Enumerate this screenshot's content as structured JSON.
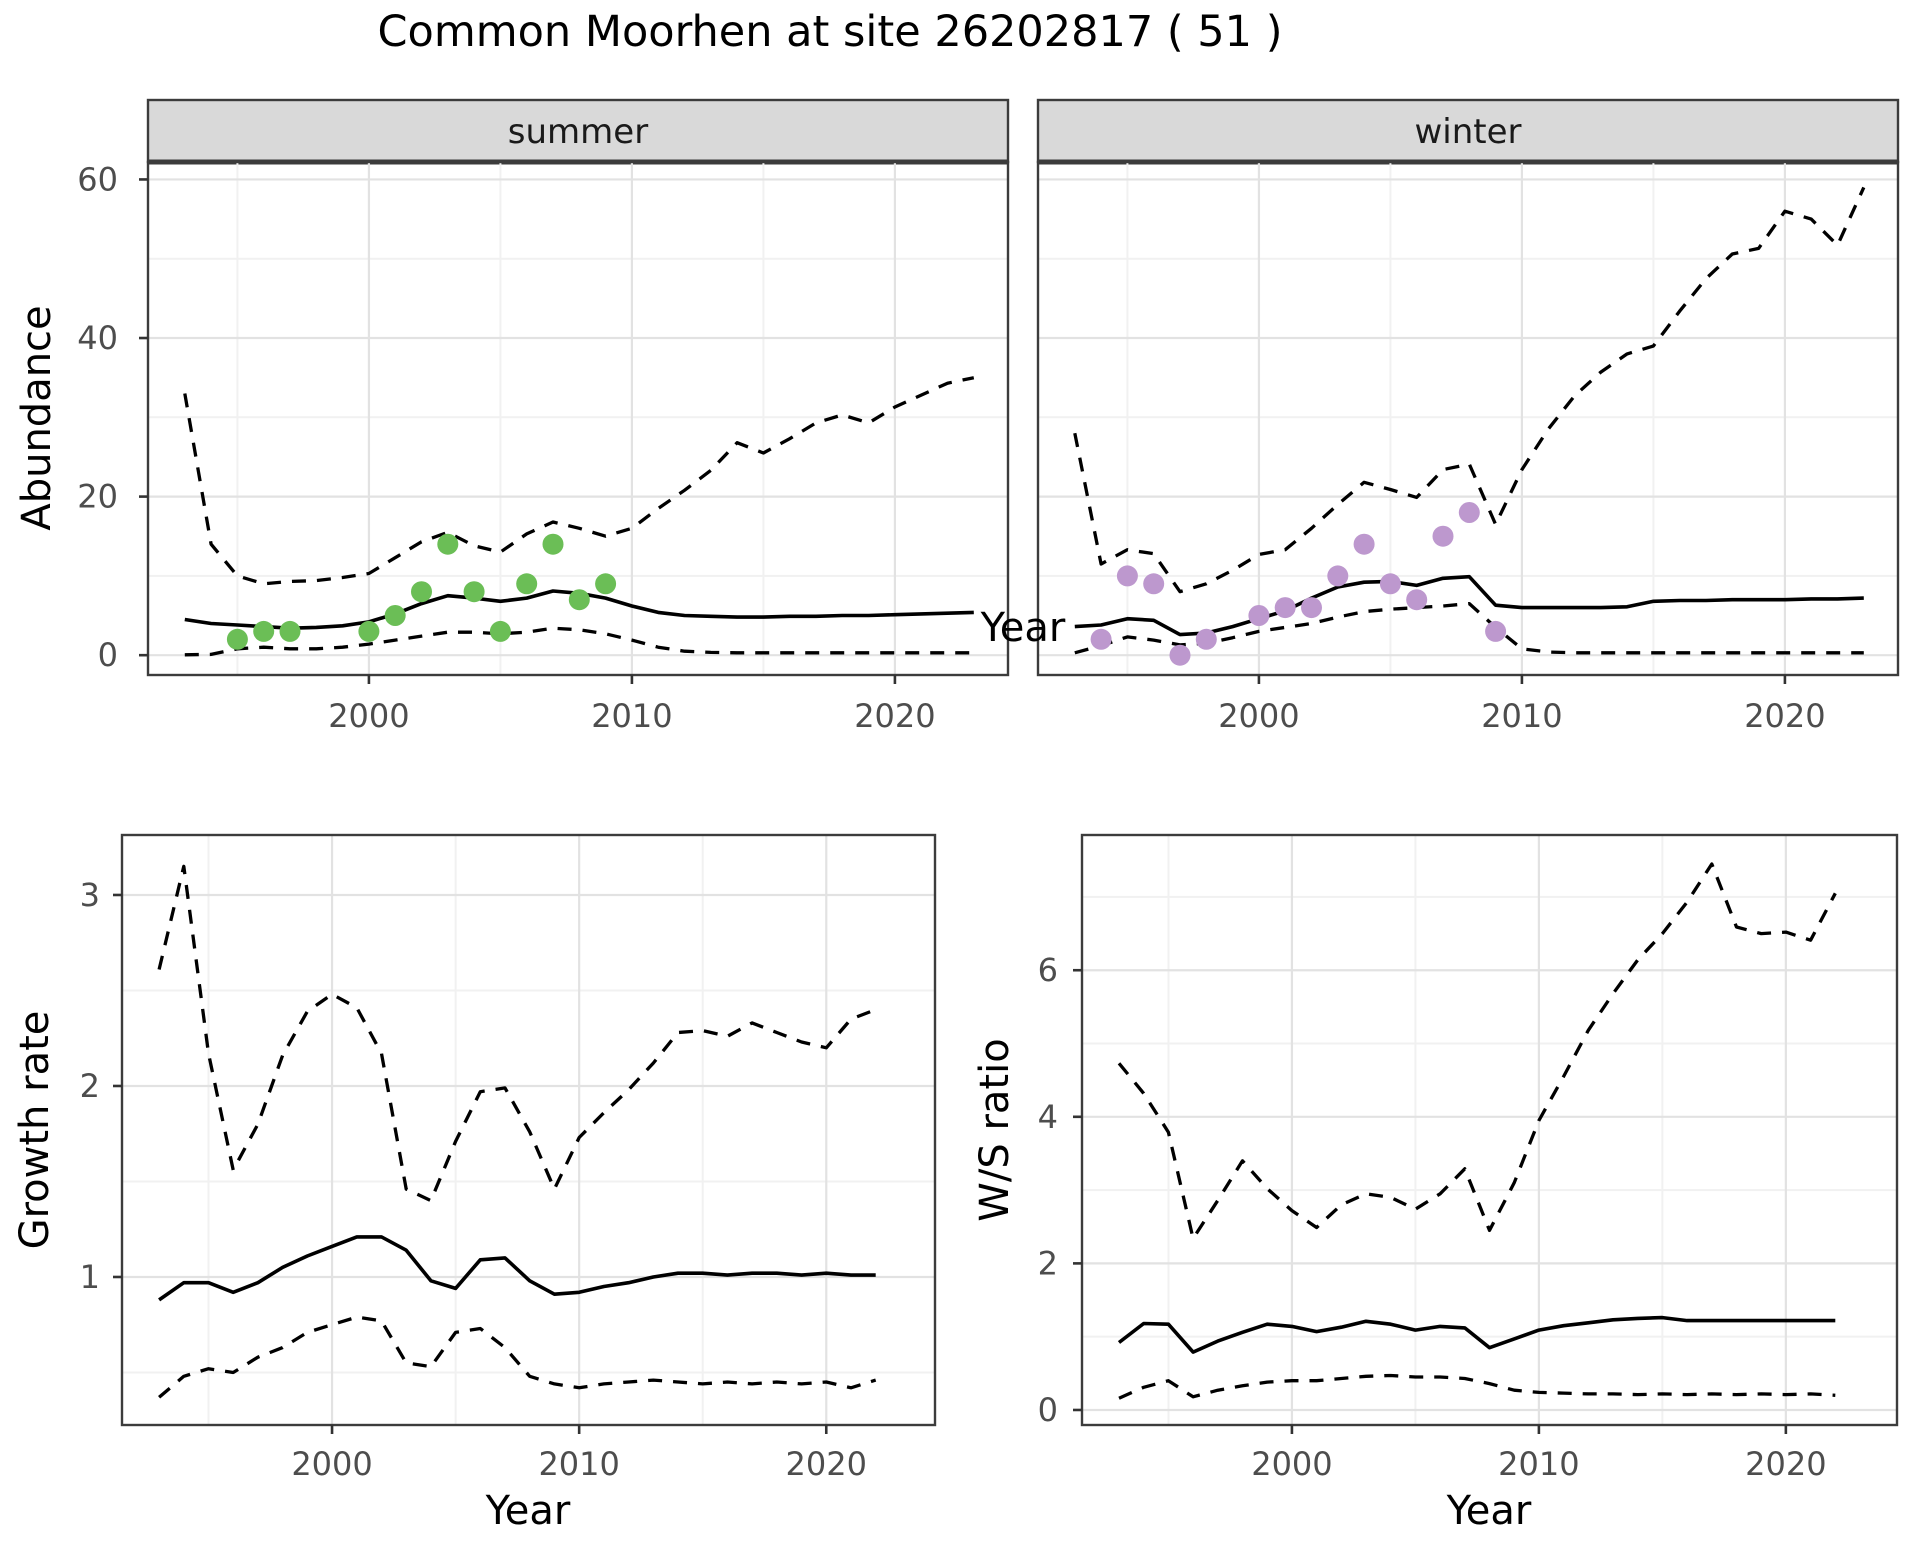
{
  "title": "Common Moorhen at site 26202817 ( 51 )",
  "colors": {
    "summer_points": "#6BBE56",
    "winter_points": "#BD98CE",
    "line": "#000000",
    "strip_bg": "#D9D9D9",
    "strip_border": "#3C3C3C",
    "panel_border": "#3C3C3C",
    "grid_major": "#E2E2E2",
    "grid_minor": "#F1F1F1",
    "tick_color": "#333333",
    "axis_text": "#4D4D4D",
    "title_text": "#000000",
    "strip_text": "#1A1A1A"
  },
  "chart_data": [
    {
      "panel": "abundance-summer",
      "type": "line",
      "facet_label": "summer",
      "xlabel": "Year",
      "ylabel": "Abundance",
      "xlim": [
        1991.6,
        2024.3
      ],
      "ylim": [
        -2.5,
        62.2
      ],
      "x_major": [
        2000,
        2010,
        2020
      ],
      "x_minor": [
        1995,
        2005,
        2015
      ],
      "y_major": [
        0,
        20,
        40,
        60
      ],
      "y_minor": [
        10,
        30,
        50
      ],
      "grid": true,
      "legend": "none",
      "series": [
        {
          "name": "fitted-median",
          "style": "solid",
          "x": [
            1993,
            1994,
            1995,
            1996,
            1997,
            1998,
            1999,
            2000,
            2001,
            2002,
            2003,
            2004,
            2005,
            2006,
            2007,
            2008,
            2009,
            2010,
            2011,
            2012,
            2013,
            2014,
            2015,
            2016,
            2017,
            2018,
            2019,
            2020,
            2021,
            2022,
            2023
          ],
          "y": [
            4.5,
            4.0,
            3.8,
            3.6,
            3.4,
            3.5,
            3.7,
            4.2,
            5.2,
            6.5,
            7.5,
            7.2,
            6.8,
            7.2,
            8.1,
            7.8,
            7.2,
            6.2,
            5.4,
            5.0,
            4.9,
            4.8,
            4.8,
            4.9,
            4.9,
            5.0,
            5.0,
            5.1,
            5.2,
            5.3,
            5.4
          ]
        },
        {
          "name": "upper-ci",
          "style": "dashed",
          "x": [
            1993,
            1994,
            1995,
            1996,
            1997,
            1998,
            1999,
            2000,
            2001,
            2002,
            2003,
            2004,
            2005,
            2006,
            2007,
            2008,
            2009,
            2010,
            2011,
            2012,
            2013,
            2014,
            2015,
            2016,
            2017,
            2018,
            2019,
            2020,
            2021,
            2022,
            2023
          ],
          "y": [
            33,
            14,
            10,
            9,
            9.3,
            9.4,
            9.8,
            10.3,
            12.3,
            14.3,
            15.5,
            13.8,
            13,
            15.3,
            16.8,
            16,
            15,
            16,
            18.5,
            20.8,
            23.3,
            26.8,
            25.5,
            27.3,
            29.3,
            30.3,
            29.3,
            31.3,
            32.8,
            34.3,
            35
          ]
        },
        {
          "name": "lower-ci",
          "style": "dashed",
          "x": [
            1993,
            1994,
            1995,
            1996,
            1997,
            1998,
            1999,
            2000,
            2001,
            2002,
            2003,
            2004,
            2005,
            2006,
            2007,
            2008,
            2009,
            2010,
            2011,
            2012,
            2013,
            2014,
            2015,
            2016,
            2017,
            2018,
            2019,
            2020,
            2021,
            2022,
            2023
          ],
          "y": [
            0.05,
            0.1,
            0.8,
            1.0,
            0.8,
            0.8,
            1.0,
            1.4,
            1.9,
            2.4,
            2.9,
            2.9,
            2.7,
            2.9,
            3.4,
            3.2,
            2.7,
            1.9,
            1.0,
            0.5,
            0.35,
            0.3,
            0.3,
            0.3,
            0.3,
            0.3,
            0.3,
            0.3,
            0.3,
            0.3,
            0.3
          ]
        },
        {
          "name": "observed-counts",
          "style": "points",
          "color": "#6BBE56",
          "x": [
            1995,
            1996,
            1997,
            2000,
            2001,
            2002,
            2003,
            2004,
            2005,
            2006,
            2007,
            2008,
            2009
          ],
          "y": [
            2,
            3,
            3,
            3,
            5,
            8,
            14,
            8,
            3,
            9,
            14,
            7,
            9
          ]
        }
      ]
    },
    {
      "panel": "abundance-winter",
      "type": "line",
      "facet_label": "winter",
      "xlabel": "Year",
      "ylabel": "Abundance",
      "xlim": [
        1991.6,
        2024.3
      ],
      "ylim": [
        -2.5,
        62.2
      ],
      "x_major": [
        2000,
        2010,
        2020
      ],
      "x_minor": [
        1995,
        2005,
        2015
      ],
      "y_major": [
        0,
        20,
        40,
        60
      ],
      "y_minor": [
        10,
        30,
        50
      ],
      "grid": true,
      "legend": "none",
      "series": [
        {
          "name": "fitted-median",
          "style": "solid",
          "x": [
            1993,
            1994,
            1995,
            1996,
            1997,
            1998,
            1999,
            2000,
            2001,
            2002,
            2003,
            2004,
            2005,
            2006,
            2007,
            2008,
            2009,
            2010,
            2011,
            2012,
            2013,
            2014,
            2015,
            2016,
            2017,
            2018,
            2019,
            2020,
            2021,
            2022,
            2023
          ],
          "y": [
            3.6,
            3.8,
            4.6,
            4.4,
            2.6,
            2.8,
            3.6,
            4.6,
            5.6,
            7.2,
            8.6,
            9.2,
            9.3,
            8.8,
            9.7,
            9.9,
            6.3,
            6.0,
            6.0,
            6.0,
            6.0,
            6.1,
            6.8,
            6.9,
            6.9,
            7.0,
            7.0,
            7.0,
            7.1,
            7.1,
            7.2
          ]
        },
        {
          "name": "upper-ci",
          "style": "dashed",
          "x": [
            1993,
            1994,
            1995,
            1996,
            1997,
            1998,
            1999,
            2000,
            2001,
            2002,
            2003,
            2004,
            2005,
            2006,
            2007,
            2008,
            2009,
            2010,
            2011,
            2012,
            2013,
            2014,
            2015,
            2016,
            2017,
            2018,
            2019,
            2020,
            2021,
            2022,
            2023
          ],
          "y": [
            28,
            11.5,
            13.3,
            12.8,
            8,
            9,
            10.7,
            12.7,
            13.3,
            16,
            19,
            21.8,
            20.9,
            19.9,
            23.4,
            24.1,
            16.5,
            23.4,
            28.5,
            32.7,
            35.7,
            38,
            39,
            43.4,
            47.5,
            50.6,
            51.3,
            56,
            55,
            51.7,
            59
          ]
        },
        {
          "name": "lower-ci",
          "style": "dashed",
          "x": [
            1993,
            1994,
            1995,
            1996,
            1997,
            1998,
            1999,
            2000,
            2001,
            2002,
            2003,
            2004,
            2005,
            2006,
            2007,
            2008,
            2009,
            2010,
            2011,
            2012,
            2013,
            2014,
            2015,
            2016,
            2017,
            2018,
            2019,
            2020,
            2021,
            2022,
            2023
          ],
          "y": [
            0.3,
            1.2,
            2.3,
            1.9,
            1.3,
            1.5,
            2.2,
            3.0,
            3.5,
            4.0,
            4.8,
            5.5,
            5.8,
            6.0,
            6.2,
            6.5,
            3.5,
            0.8,
            0.4,
            0.3,
            0.3,
            0.3,
            0.3,
            0.3,
            0.3,
            0.3,
            0.3,
            0.3,
            0.3,
            0.3,
            0.3
          ]
        },
        {
          "name": "observed-counts",
          "style": "points",
          "color": "#BD98CE",
          "x": [
            1994,
            1995,
            1996,
            1997,
            1998,
            2000,
            2001,
            2002,
            2003,
            2004,
            2005,
            2006,
            2007,
            2008,
            2009
          ],
          "y": [
            2,
            10,
            9,
            0,
            2,
            5,
            6,
            6,
            10,
            14,
            9,
            7,
            15,
            18,
            3
          ]
        }
      ]
    },
    {
      "panel": "growth-rate",
      "type": "line",
      "facet_label": "",
      "xlabel": "Year",
      "ylabel": "Growth rate",
      "xlim": [
        1991.5,
        2024.4
      ],
      "ylim": [
        0.225,
        3.314
      ],
      "x_major": [
        2000,
        2010,
        2020
      ],
      "x_minor": [
        1995,
        2005,
        2015
      ],
      "y_major": [
        1,
        2,
        3
      ],
      "y_minor": [
        0.5,
        1.5,
        2.5
      ],
      "grid": true,
      "legend": "none",
      "series": [
        {
          "name": "fitted-median",
          "style": "solid",
          "x": [
            1993,
            1994,
            1995,
            1996,
            1997,
            1998,
            1999,
            2000,
            2001,
            2002,
            2003,
            2004,
            2005,
            2006,
            2007,
            2008,
            2009,
            2010,
            2011,
            2012,
            2013,
            2014,
            2015,
            2016,
            2017,
            2018,
            2019,
            2020,
            2021,
            2022
          ],
          "y": [
            0.88,
            0.97,
            0.97,
            0.92,
            0.97,
            1.05,
            1.11,
            1.16,
            1.21,
            1.21,
            1.14,
            0.98,
            0.94,
            1.09,
            1.1,
            0.98,
            0.91,
            0.92,
            0.95,
            0.97,
            1.0,
            1.02,
            1.02,
            1.01,
            1.02,
            1.02,
            1.01,
            1.02,
            1.01,
            1.01
          ]
        },
        {
          "name": "upper-ci",
          "style": "dashed",
          "x": [
            1993,
            1994,
            1995,
            1996,
            1997,
            1998,
            1999,
            2000,
            2001,
            2002,
            2003,
            2004,
            2005,
            2006,
            2007,
            2008,
            2009,
            2010,
            2011,
            2012,
            2013,
            2014,
            2015,
            2016,
            2017,
            2018,
            2019,
            2020,
            2021,
            2022
          ],
          "y": [
            2.61,
            3.15,
            2.17,
            1.56,
            1.8,
            2.16,
            2.39,
            2.48,
            2.41,
            2.17,
            1.46,
            1.4,
            1.71,
            1.97,
            1.99,
            1.76,
            1.46,
            1.73,
            1.86,
            1.98,
            2.12,
            2.28,
            2.29,
            2.26,
            2.33,
            2.28,
            2.23,
            2.2,
            2.35,
            2.4
          ]
        },
        {
          "name": "lower-ci",
          "style": "dashed",
          "x": [
            1993,
            1994,
            1995,
            1996,
            1997,
            1998,
            1999,
            2000,
            2001,
            2002,
            2003,
            2004,
            2005,
            2006,
            2007,
            2008,
            2009,
            2010,
            2011,
            2012,
            2013,
            2014,
            2015,
            2016,
            2017,
            2018,
            2019,
            2020,
            2021,
            2022
          ],
          "y": [
            0.37,
            0.48,
            0.52,
            0.5,
            0.58,
            0.63,
            0.71,
            0.75,
            0.79,
            0.77,
            0.55,
            0.53,
            0.71,
            0.73,
            0.63,
            0.48,
            0.44,
            0.42,
            0.44,
            0.45,
            0.46,
            0.45,
            0.44,
            0.45,
            0.44,
            0.45,
            0.44,
            0.45,
            0.42,
            0.46
          ]
        }
      ]
    },
    {
      "panel": "ws-ratio",
      "type": "line",
      "facet_label": "",
      "xlabel": "Year",
      "ylabel": "W/S ratio",
      "xlim": [
        1991.5,
        2024.5
      ],
      "ylim": [
        -0.205,
        7.845
      ],
      "x_major": [
        2000,
        2010,
        2020
      ],
      "x_minor": [
        1995,
        2005,
        2015
      ],
      "y_major": [
        0,
        2,
        4,
        6
      ],
      "y_minor": [
        1,
        3,
        5,
        7
      ],
      "grid": true,
      "legend": "none",
      "series": [
        {
          "name": "fitted-median",
          "style": "solid",
          "x": [
            1993,
            1994,
            1995,
            1996,
            1997,
            1998,
            1999,
            2000,
            2001,
            2002,
            2003,
            2004,
            2005,
            2006,
            2007,
            2008,
            2009,
            2010,
            2011,
            2012,
            2013,
            2014,
            2015,
            2016,
            2017,
            2018,
            2019,
            2020,
            2021,
            2022
          ],
          "y": [
            0.92,
            1.18,
            1.17,
            0.79,
            0.94,
            1.06,
            1.17,
            1.14,
            1.07,
            1.13,
            1.21,
            1.17,
            1.09,
            1.14,
            1.12,
            0.85,
            0.97,
            1.09,
            1.15,
            1.19,
            1.23,
            1.25,
            1.26,
            1.22,
            1.22,
            1.22,
            1.22,
            1.22,
            1.22,
            1.22
          ]
        },
        {
          "name": "upper-ci",
          "style": "dashed",
          "x": [
            1993,
            1994,
            1995,
            1996,
            1997,
            1998,
            1999,
            2000,
            2001,
            2002,
            2003,
            2004,
            2005,
            2006,
            2007,
            2008,
            2009,
            2010,
            2011,
            2012,
            2013,
            2014,
            2015,
            2016,
            2017,
            2018,
            2019,
            2020,
            2021,
            2022
          ],
          "y": [
            4.73,
            4.32,
            3.79,
            2.34,
            2.86,
            3.4,
            3.02,
            2.72,
            2.49,
            2.8,
            2.95,
            2.9,
            2.74,
            2.95,
            3.29,
            2.45,
            3.1,
            3.95,
            4.55,
            5.18,
            5.68,
            6.14,
            6.5,
            6.93,
            7.45,
            6.59,
            6.5,
            6.52,
            6.41,
            7.05
          ]
        },
        {
          "name": "lower-ci",
          "style": "dashed",
          "x": [
            1993,
            1994,
            1995,
            1996,
            1997,
            1998,
            1999,
            2000,
            2001,
            2002,
            2003,
            2004,
            2005,
            2006,
            2007,
            2008,
            2009,
            2010,
            2011,
            2012,
            2013,
            2014,
            2015,
            2016,
            2017,
            2018,
            2019,
            2020,
            2021,
            2022
          ],
          "y": [
            0.16,
            0.31,
            0.4,
            0.18,
            0.27,
            0.33,
            0.38,
            0.4,
            0.4,
            0.43,
            0.46,
            0.47,
            0.45,
            0.45,
            0.43,
            0.36,
            0.27,
            0.24,
            0.23,
            0.22,
            0.22,
            0.21,
            0.22,
            0.21,
            0.22,
            0.21,
            0.22,
            0.21,
            0.22,
            0.2
          ]
        }
      ]
    }
  ]
}
